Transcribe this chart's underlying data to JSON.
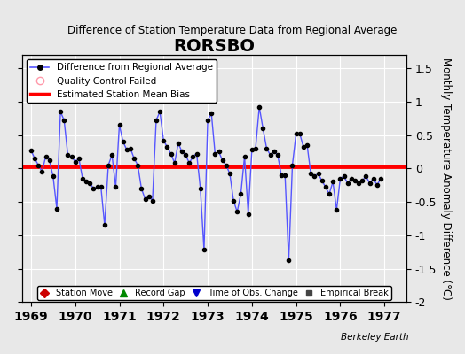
{
  "title": "RORSBO",
  "subtitle": "Difference of Station Temperature Data from Regional Average",
  "ylabel": "Monthly Temperature Anomaly Difference (°C)",
  "bias": 0.03,
  "bias_color": "#ff0000",
  "line_color": "#5555ff",
  "marker_color": "#000000",
  "bg_color": "#e8e8e8",
  "plot_bg_color": "#e8e8e8",
  "xlim_left": 1968.8,
  "xlim_right": 1977.5,
  "ylim_bottom": -2.0,
  "ylim_top": 1.7,
  "yticks": [
    -2.0,
    -1.5,
    -1.0,
    -0.5,
    0.0,
    0.5,
    1.0,
    1.5
  ],
  "xticks": [
    1969,
    1970,
    1971,
    1972,
    1973,
    1974,
    1975,
    1976,
    1977
  ],
  "berkeley_earth_label": "Berkeley Earth",
  "values": [
    0.27,
    0.15,
    0.05,
    -0.05,
    0.18,
    0.12,
    -0.12,
    -0.6,
    0.85,
    0.72,
    0.2,
    0.18,
    0.1,
    0.15,
    -0.15,
    -0.2,
    -0.22,
    -0.3,
    -0.28,
    -0.28,
    -0.85,
    0.05,
    0.2,
    -0.28,
    0.65,
    0.4,
    0.28,
    0.3,
    0.15,
    0.05,
    -0.3,
    -0.46,
    -0.42,
    -0.48,
    0.72,
    0.85,
    0.42,
    0.32,
    0.22,
    0.08,
    0.38,
    0.25,
    0.2,
    0.08,
    0.18,
    0.22,
    -0.3,
    -1.22,
    0.72,
    0.82,
    0.22,
    0.25,
    0.12,
    0.05,
    -0.08,
    -0.48,
    -0.65,
    -0.38,
    0.18,
    -0.68,
    0.28,
    0.3,
    0.92,
    0.6,
    0.3,
    0.2,
    0.25,
    0.2,
    -0.1,
    -0.1,
    -1.38,
    0.05,
    0.52,
    0.52,
    0.32,
    0.35,
    -0.08,
    -0.12,
    -0.08,
    -0.18,
    -0.28,
    -0.38,
    -0.2,
    -0.62,
    -0.15,
    -0.12,
    -0.22,
    -0.15,
    -0.18,
    -0.22,
    -0.18,
    -0.12,
    -0.22,
    -0.15,
    -0.25,
    -0.15
  ],
  "legend1_entries": [
    {
      "label": "Difference from Regional Average",
      "color": "#5555ff",
      "marker": "o",
      "linestyle": "-"
    },
    {
      "label": "Quality Control Failed",
      "color": "#ffaaaa",
      "marker": "o",
      "linestyle": "none"
    },
    {
      "label": "Estimated Station Mean Bias",
      "color": "#ff0000",
      "marker": "none",
      "linestyle": "-"
    }
  ],
  "legend2_entries": [
    {
      "label": "Station Move",
      "color": "#cc0000",
      "marker": "D",
      "linestyle": "none"
    },
    {
      "label": "Record Gap",
      "color": "#008800",
      "marker": "^",
      "linestyle": "none"
    },
    {
      "label": "Time of Obs. Change",
      "color": "#0000cc",
      "marker": "v",
      "linestyle": "none"
    },
    {
      "label": "Empirical Break",
      "color": "#444444",
      "marker": "s",
      "linestyle": "none"
    }
  ]
}
